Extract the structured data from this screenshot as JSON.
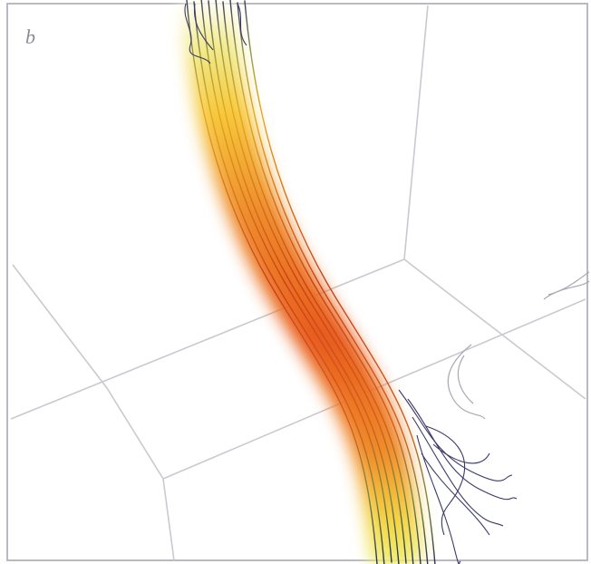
{
  "panel_label": "b"
}
